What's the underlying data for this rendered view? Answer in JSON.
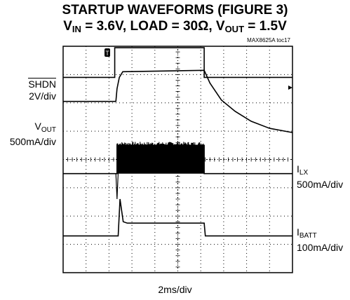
{
  "title_line1": "STARTUP WAVEFORMS (FIGURE 3)",
  "title_line2": {
    "v": "V",
    "v_sub": "IN",
    "rest1": " = 3.6V, LOAD = 30Ω, V",
    "vout_sub": "OUT",
    "rest2": " = 1.5V"
  },
  "code": "MAX8625A toc17",
  "xlabel": "2ms/div",
  "trigger_marker": "T",
  "channels": {
    "shdn": {
      "name": "SHDN",
      "scale": "2V/div"
    },
    "vout": {
      "main": "V",
      "sub": "OUT",
      "scale": "500mA/div"
    },
    "ilx": {
      "main": "I",
      "sub": "LX",
      "scale": "500mA/div"
    },
    "ibatt": {
      "main": "I",
      "sub": "BATT",
      "scale": "100mA/div"
    }
  },
  "chart_data": {
    "type": "line",
    "x_unit": "div",
    "xlim": [
      0,
      10
    ],
    "ylim": [
      0,
      8
    ],
    "grid": true,
    "series": [
      {
        "name": "SHDN",
        "x": [
          0,
          2.25,
          2.25,
          6.15,
          6.15,
          10
        ],
        "y": [
          6.9,
          6.9,
          7.95,
          7.95,
          6.9,
          6.9
        ]
      },
      {
        "name": "VOUT",
        "x": [
          0,
          2.3,
          2.35,
          2.45,
          2.6,
          6.15,
          6.4,
          6.9,
          7.5,
          8.2,
          9.0,
          10
        ],
        "y": [
          6.05,
          6.05,
          6.5,
          6.9,
          7.1,
          7.15,
          6.7,
          6.1,
          5.7,
          5.35,
          5.1,
          4.95
        ]
      },
      {
        "name": "ILX",
        "x": [
          0,
          2.35,
          2.35,
          6.15,
          6.15,
          10
        ],
        "y": [
          3.5,
          3.5,
          4.5,
          4.5,
          3.5,
          3.5
        ],
        "note": "switching burst between 2.35 and 6.15 div"
      },
      {
        "name": "IBATT",
        "x": [
          0,
          2.4,
          2.48,
          2.55,
          2.62,
          2.8,
          6.15,
          6.2,
          10
        ],
        "y": [
          1.3,
          1.3,
          2.6,
          2.2,
          1.8,
          1.75,
          1.75,
          1.3,
          1.3
        ]
      }
    ]
  }
}
